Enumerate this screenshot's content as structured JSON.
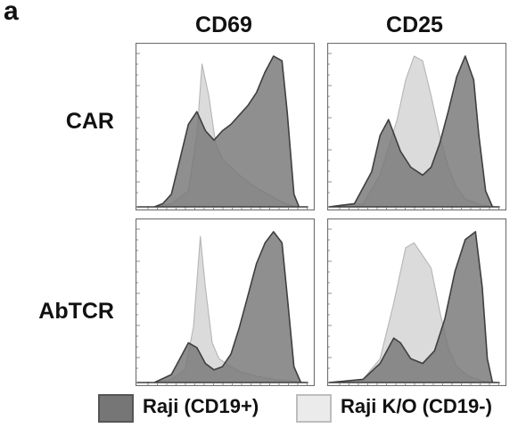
{
  "figure_label": "a",
  "chart_data": [
    {
      "type": "area",
      "column": "CD69",
      "row": "CAR",
      "series": [
        {
          "name": "Raji (CD19+)",
          "color": "#767676",
          "x": [
            0.0,
            0.1,
            0.15,
            0.2,
            0.25,
            0.3,
            0.35,
            0.4,
            0.45,
            0.5,
            0.55,
            0.6,
            0.65,
            0.7,
            0.75,
            0.8,
            0.85,
            0.88,
            0.92,
            0.95,
            1.0
          ],
          "y": [
            0,
            0,
            0.02,
            0.08,
            0.3,
            0.52,
            0.6,
            0.48,
            0.42,
            0.48,
            0.52,
            0.58,
            0.64,
            0.72,
            0.85,
            0.95,
            0.92,
            0.6,
            0.08,
            0,
            0
          ]
        },
        {
          "name": "Raji K/O (CD19-)",
          "color": "#d9d9d9",
          "x": [
            0.0,
            0.1,
            0.2,
            0.3,
            0.35,
            0.38,
            0.42,
            0.46,
            0.5,
            0.6,
            0.7,
            0.8,
            0.85,
            0.9,
            0.95,
            1.0
          ],
          "y": [
            0,
            0,
            0.02,
            0.1,
            0.45,
            0.9,
            0.7,
            0.4,
            0.3,
            0.2,
            0.12,
            0.06,
            0.03,
            0.01,
            0,
            0
          ]
        }
      ]
    },
    {
      "type": "area",
      "column": "CD25",
      "row": "CAR",
      "series": [
        {
          "name": "Raji (CD19+)",
          "color": "#767676",
          "x": [
            0.0,
            0.15,
            0.25,
            0.3,
            0.35,
            0.42,
            0.48,
            0.55,
            0.6,
            0.65,
            0.7,
            0.75,
            0.8,
            0.85,
            0.88,
            0.92,
            0.96,
            1.0
          ],
          "y": [
            0,
            0.02,
            0.22,
            0.45,
            0.55,
            0.35,
            0.25,
            0.2,
            0.25,
            0.4,
            0.6,
            0.82,
            0.95,
            0.8,
            0.45,
            0.1,
            0,
            0
          ]
        },
        {
          "name": "Raji K/O (CD19-)",
          "color": "#d9d9d9",
          "x": [
            0.0,
            0.2,
            0.3,
            0.4,
            0.45,
            0.5,
            0.55,
            0.6,
            0.65,
            0.7,
            0.75,
            0.8,
            0.9,
            1.0
          ],
          "y": [
            0,
            0.02,
            0.2,
            0.55,
            0.8,
            0.95,
            0.92,
            0.7,
            0.45,
            0.25,
            0.12,
            0.05,
            0.01,
            0
          ]
        }
      ]
    },
    {
      "type": "area",
      "column": "CD69",
      "row": "AbTCR",
      "series": [
        {
          "name": "Raji (CD19+)",
          "color": "#767676",
          "x": [
            0.0,
            0.1,
            0.2,
            0.25,
            0.3,
            0.35,
            0.4,
            0.45,
            0.5,
            0.55,
            0.6,
            0.65,
            0.7,
            0.75,
            0.8,
            0.85,
            0.88,
            0.92,
            0.96,
            1.0
          ],
          "y": [
            0,
            0,
            0.05,
            0.15,
            0.25,
            0.22,
            0.12,
            0.08,
            0.1,
            0.18,
            0.35,
            0.55,
            0.75,
            0.88,
            0.95,
            0.88,
            0.55,
            0.1,
            0,
            0
          ]
        },
        {
          "name": "Raji K/O (CD19-)",
          "color": "#d9d9d9",
          "x": [
            0.0,
            0.1,
            0.2,
            0.28,
            0.33,
            0.37,
            0.4,
            0.44,
            0.48,
            0.55,
            0.6,
            0.7,
            0.8,
            0.9,
            1.0
          ],
          "y": [
            0,
            0,
            0.02,
            0.08,
            0.35,
            0.92,
            0.6,
            0.25,
            0.15,
            0.1,
            0.07,
            0.04,
            0.02,
            0.01,
            0
          ]
        }
      ]
    },
    {
      "type": "area",
      "column": "CD25",
      "row": "AbTCR",
      "series": [
        {
          "name": "Raji (CD19+)",
          "color": "#767676",
          "x": [
            0.0,
            0.2,
            0.3,
            0.38,
            0.42,
            0.48,
            0.55,
            0.62,
            0.68,
            0.74,
            0.8,
            0.86,
            0.9,
            0.93,
            0.96,
            1.0
          ],
          "y": [
            0,
            0.02,
            0.12,
            0.28,
            0.25,
            0.15,
            0.12,
            0.2,
            0.4,
            0.7,
            0.9,
            0.95,
            0.6,
            0.15,
            0,
            0
          ]
        },
        {
          "name": "Raji K/O (CD19-)",
          "color": "#d9d9d9",
          "x": [
            0.0,
            0.2,
            0.3,
            0.38,
            0.45,
            0.5,
            0.55,
            0.6,
            0.65,
            0.7,
            0.75,
            0.82,
            0.9,
            1.0
          ],
          "y": [
            0,
            0.02,
            0.15,
            0.5,
            0.85,
            0.88,
            0.8,
            0.72,
            0.45,
            0.22,
            0.1,
            0.04,
            0.01,
            0
          ]
        }
      ]
    }
  ],
  "columns": [
    "CD69",
    "CD25"
  ],
  "rows": [
    "CAR",
    "AbTCR"
  ],
  "legend": [
    {
      "label": "Raji (CD19+)",
      "fill": "#767676",
      "stroke": "#555555"
    },
    {
      "label": "Raji K/O (CD19-)",
      "fill": "#ebebeb",
      "stroke": "#bdbdbd"
    }
  ]
}
